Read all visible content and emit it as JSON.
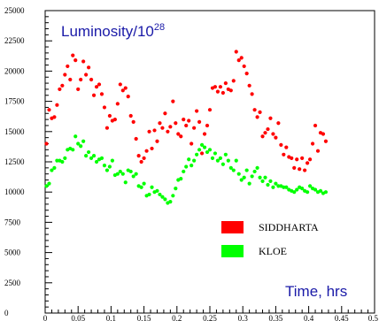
{
  "chart_data": {
    "type": "scatter",
    "title": "Luminosity/10",
    "title_superscript": "28",
    "xlabel": "Time, hrs",
    "ylabel": "",
    "xlim": [
      0,
      0.5
    ],
    "ylim": [
      0,
      25000
    ],
    "xticks": [
      "0",
      "0.05",
      "0.1",
      "0.15",
      "0.2",
      "0.25",
      "0.3",
      "0.35",
      "0.4",
      "0.45",
      "0.5"
    ],
    "yticks": [
      "0",
      "2500",
      "5000",
      "7500",
      "10000",
      "12500",
      "15000",
      "17500",
      "20000",
      "22500",
      "25000"
    ],
    "legend_position": "lower-right",
    "series": [
      {
        "name": "SIDDHARTA",
        "color": "#ff0000",
        "points": [
          [
            0.002,
            14000
          ],
          [
            0.006,
            16800
          ],
          [
            0.01,
            16100
          ],
          [
            0.014,
            16200
          ],
          [
            0.018,
            17200
          ],
          [
            0.022,
            18500
          ],
          [
            0.026,
            18800
          ],
          [
            0.03,
            19700
          ],
          [
            0.034,
            20400
          ],
          [
            0.038,
            19300
          ],
          [
            0.042,
            21300
          ],
          [
            0.046,
            20900
          ],
          [
            0.05,
            18500
          ],
          [
            0.054,
            19300
          ],
          [
            0.058,
            20800
          ],
          [
            0.062,
            19700
          ],
          [
            0.066,
            20300
          ],
          [
            0.07,
            19300
          ],
          [
            0.074,
            18000
          ],
          [
            0.078,
            18700
          ],
          [
            0.082,
            18900
          ],
          [
            0.086,
            18100
          ],
          [
            0.09,
            17000
          ],
          [
            0.094,
            15300
          ],
          [
            0.098,
            16300
          ],
          [
            0.102,
            15900
          ],
          [
            0.106,
            16000
          ],
          [
            0.11,
            17300
          ],
          [
            0.114,
            18900
          ],
          [
            0.118,
            18400
          ],
          [
            0.122,
            18600
          ],
          [
            0.126,
            17900
          ],
          [
            0.13,
            16300
          ],
          [
            0.134,
            15800
          ],
          [
            0.138,
            14400
          ],
          [
            0.142,
            13000
          ],
          [
            0.146,
            12500
          ],
          [
            0.15,
            12800
          ],
          [
            0.154,
            13400
          ],
          [
            0.158,
            15000
          ],
          [
            0.162,
            13600
          ],
          [
            0.166,
            15100
          ],
          [
            0.17,
            14200
          ],
          [
            0.174,
            15700
          ],
          [
            0.178,
            15300
          ],
          [
            0.182,
            16500
          ],
          [
            0.186,
            15000
          ],
          [
            0.19,
            15400
          ],
          [
            0.194,
            17500
          ],
          [
            0.198,
            15700
          ],
          [
            0.202,
            14800
          ],
          [
            0.206,
            14600
          ],
          [
            0.21,
            16000
          ],
          [
            0.214,
            15500
          ],
          [
            0.218,
            15900
          ],
          [
            0.222,
            14000
          ],
          [
            0.226,
            15300
          ],
          [
            0.23,
            16700
          ],
          [
            0.234,
            15800
          ],
          [
            0.238,
            13200
          ],
          [
            0.242,
            14800
          ],
          [
            0.246,
            15500
          ],
          [
            0.25,
            16800
          ],
          [
            0.254,
            18600
          ],
          [
            0.258,
            18700
          ],
          [
            0.262,
            18300
          ],
          [
            0.266,
            18700
          ],
          [
            0.27,
            18200
          ],
          [
            0.274,
            19000
          ],
          [
            0.278,
            18500
          ],
          [
            0.282,
            18400
          ],
          [
            0.286,
            19200
          ],
          [
            0.29,
            21600
          ],
          [
            0.294,
            20900
          ],
          [
            0.298,
            21100
          ],
          [
            0.302,
            20400
          ],
          [
            0.306,
            19800
          ],
          [
            0.31,
            18800
          ],
          [
            0.314,
            18100
          ],
          [
            0.318,
            16800
          ],
          [
            0.322,
            16200
          ],
          [
            0.326,
            16600
          ],
          [
            0.33,
            14600
          ],
          [
            0.334,
            14900
          ],
          [
            0.338,
            15200
          ],
          [
            0.342,
            16100
          ],
          [
            0.346,
            14800
          ],
          [
            0.35,
            14500
          ],
          [
            0.354,
            15700
          ],
          [
            0.358,
            13900
          ],
          [
            0.362,
            13100
          ],
          [
            0.366,
            13700
          ],
          [
            0.37,
            12900
          ],
          [
            0.374,
            12800
          ],
          [
            0.378,
            12000
          ],
          [
            0.382,
            12700
          ],
          [
            0.386,
            11900
          ],
          [
            0.39,
            12800
          ],
          [
            0.394,
            11800
          ],
          [
            0.398,
            12400
          ],
          [
            0.402,
            12700
          ],
          [
            0.406,
            14000
          ],
          [
            0.41,
            15500
          ],
          [
            0.414,
            13400
          ],
          [
            0.418,
            14900
          ],
          [
            0.422,
            14800
          ],
          [
            0.426,
            14200
          ]
        ]
      },
      {
        "name": "KLOE",
        "color": "#00ff00",
        "points": [
          [
            0.002,
            10500
          ],
          [
            0.006,
            10700
          ],
          [
            0.01,
            11800
          ],
          [
            0.014,
            12000
          ],
          [
            0.018,
            12600
          ],
          [
            0.022,
            12600
          ],
          [
            0.026,
            12500
          ],
          [
            0.03,
            12800
          ],
          [
            0.034,
            13500
          ],
          [
            0.038,
            13600
          ],
          [
            0.042,
            13500
          ],
          [
            0.046,
            14600
          ],
          [
            0.05,
            14000
          ],
          [
            0.054,
            13800
          ],
          [
            0.058,
            14200
          ],
          [
            0.062,
            13000
          ],
          [
            0.066,
            13300
          ],
          [
            0.07,
            12800
          ],
          [
            0.074,
            13000
          ],
          [
            0.078,
            12500
          ],
          [
            0.082,
            12700
          ],
          [
            0.086,
            12800
          ],
          [
            0.09,
            12200
          ],
          [
            0.094,
            11800
          ],
          [
            0.098,
            12100
          ],
          [
            0.102,
            12600
          ],
          [
            0.106,
            11400
          ],
          [
            0.11,
            11500
          ],
          [
            0.114,
            11700
          ],
          [
            0.118,
            11500
          ],
          [
            0.122,
            10800
          ],
          [
            0.126,
            11800
          ],
          [
            0.13,
            11700
          ],
          [
            0.134,
            11300
          ],
          [
            0.138,
            11500
          ],
          [
            0.142,
            10500
          ],
          [
            0.146,
            10400
          ],
          [
            0.15,
            10700
          ],
          [
            0.154,
            9700
          ],
          [
            0.158,
            9800
          ],
          [
            0.162,
            10400
          ],
          [
            0.166,
            10000
          ],
          [
            0.17,
            10100
          ],
          [
            0.174,
            9800
          ],
          [
            0.178,
            9600
          ],
          [
            0.182,
            9400
          ],
          [
            0.186,
            9100
          ],
          [
            0.19,
            9200
          ],
          [
            0.194,
            9700
          ],
          [
            0.198,
            10300
          ],
          [
            0.202,
            11000
          ],
          [
            0.206,
            11100
          ],
          [
            0.21,
            11700
          ],
          [
            0.214,
            12100
          ],
          [
            0.218,
            12700
          ],
          [
            0.222,
            12200
          ],
          [
            0.226,
            12600
          ],
          [
            0.23,
            13100
          ],
          [
            0.234,
            13500
          ],
          [
            0.238,
            13900
          ],
          [
            0.242,
            13700
          ],
          [
            0.246,
            13300
          ],
          [
            0.25,
            13500
          ],
          [
            0.254,
            12800
          ],
          [
            0.258,
            13200
          ],
          [
            0.262,
            12600
          ],
          [
            0.266,
            12800
          ],
          [
            0.27,
            12300
          ],
          [
            0.274,
            13100
          ],
          [
            0.278,
            12600
          ],
          [
            0.282,
            12000
          ],
          [
            0.286,
            11800
          ],
          [
            0.29,
            12600
          ],
          [
            0.294,
            11500
          ],
          [
            0.298,
            11000
          ],
          [
            0.302,
            11200
          ],
          [
            0.306,
            11800
          ],
          [
            0.31,
            10700
          ],
          [
            0.314,
            11300
          ],
          [
            0.318,
            11700
          ],
          [
            0.322,
            12000
          ],
          [
            0.326,
            11200
          ],
          [
            0.33,
            10900
          ],
          [
            0.334,
            11200
          ],
          [
            0.338,
            10600
          ],
          [
            0.342,
            10900
          ],
          [
            0.346,
            10400
          ],
          [
            0.35,
            10700
          ],
          [
            0.354,
            10500
          ],
          [
            0.358,
            10500
          ],
          [
            0.362,
            10400
          ],
          [
            0.366,
            10400
          ],
          [
            0.37,
            10200
          ],
          [
            0.374,
            10100
          ],
          [
            0.378,
            10000
          ],
          [
            0.382,
            10200
          ],
          [
            0.386,
            10400
          ],
          [
            0.39,
            10300
          ],
          [
            0.394,
            10100
          ],
          [
            0.398,
            10000
          ],
          [
            0.402,
            10500
          ],
          [
            0.406,
            10300
          ],
          [
            0.41,
            10200
          ],
          [
            0.414,
            10000
          ],
          [
            0.418,
            10100
          ],
          [
            0.422,
            9900
          ],
          [
            0.426,
            10000
          ]
        ]
      }
    ]
  }
}
